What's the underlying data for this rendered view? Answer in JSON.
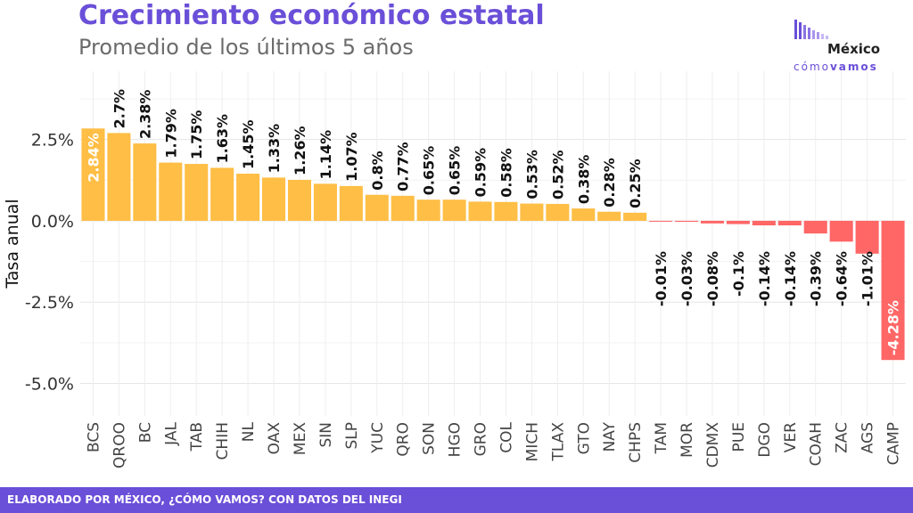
{
  "header": {
    "title": "Crecimiento económico estatal",
    "subtitle": "Promedio de los últimos 5 años"
  },
  "logo": {
    "word": "México",
    "sub_light": "cómo",
    "sub_bold": "vamos",
    "bar_color": "#6a4fd8"
  },
  "footer": {
    "text": "ELABORADO POR MÉXICO, ¿CÓMO VAMOS? CON DATOS DEL INEGI",
    "color": "#6a4fd8"
  },
  "chart_data": {
    "type": "bar",
    "ylabel": "Tasa anual",
    "xlabel": "",
    "ylim": [
      -6.0,
      4.6
    ],
    "yticks": [
      2.5,
      0.0,
      -2.5,
      -5.0
    ],
    "ytick_labels": [
      "2.5%",
      "0.0%",
      "-2.5%",
      "-5.0%"
    ],
    "grid": true,
    "positive_color": "#ffbe45",
    "negative_color": "#ff6666",
    "categories": [
      "BCS",
      "QROO",
      "BC",
      "JAL",
      "TAB",
      "CHIH",
      "NL",
      "OAX",
      "MEX",
      "SIN",
      "SLP",
      "YUC",
      "QRO",
      "SON",
      "HGO",
      "GRO",
      "COL",
      "MICH",
      "TLAX",
      "GTO",
      "NAY",
      "CHPS",
      "TAM",
      "MOR",
      "CDMX",
      "PUE",
      "DGO",
      "VER",
      "COAH",
      "ZAC",
      "AGS",
      "CAMP"
    ],
    "values": [
      2.84,
      2.7,
      2.38,
      1.79,
      1.75,
      1.63,
      1.45,
      1.33,
      1.26,
      1.14,
      1.07,
      0.8,
      0.77,
      0.65,
      0.65,
      0.59,
      0.58,
      0.53,
      0.52,
      0.38,
      0.28,
      0.25,
      -0.01,
      -0.03,
      -0.08,
      -0.1,
      -0.14,
      -0.14,
      -0.39,
      -0.64,
      -1.01,
      -4.28
    ],
    "labels": [
      "2.84%",
      "2.7%",
      "2.38%",
      "1.79%",
      "1.75%",
      "1.63%",
      "1.45%",
      "1.33%",
      "1.26%",
      "1.14%",
      "1.07%",
      "0.8%",
      "0.77%",
      "0.65%",
      "0.65%",
      "0.59%",
      "0.58%",
      "0.53%",
      "0.52%",
      "0.38%",
      "0.28%",
      "0.25%",
      "-0.01%",
      "-0.03%",
      "-0.08%",
      "-0.1%",
      "-0.14%",
      "-0.14%",
      "-0.39%",
      "-0.64%",
      "-1.01%",
      "-4.28%"
    ]
  }
}
